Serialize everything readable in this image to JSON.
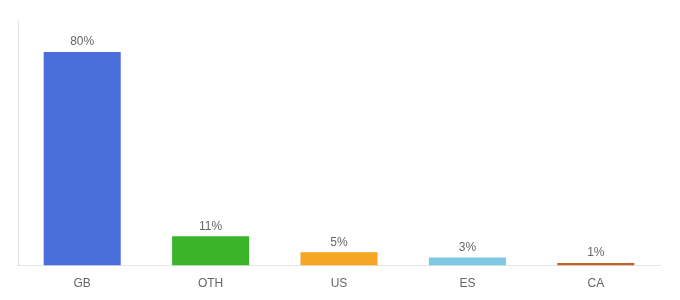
{
  "chart_data": {
    "type": "bar",
    "categories": [
      "GB",
      "OTH",
      "US",
      "ES",
      "CA"
    ],
    "values": [
      80,
      11,
      5,
      3,
      1
    ],
    "value_labels": [
      "80%",
      "11%",
      "5%",
      "3%",
      "1%"
    ],
    "colors": [
      "#4a6fdb",
      "#3ab529",
      "#f5a623",
      "#7ec8e3",
      "#c0622a"
    ],
    "ylim": [
      0,
      92
    ],
    "grid": false,
    "tick_labels": "x",
    "data_labels": true
  }
}
